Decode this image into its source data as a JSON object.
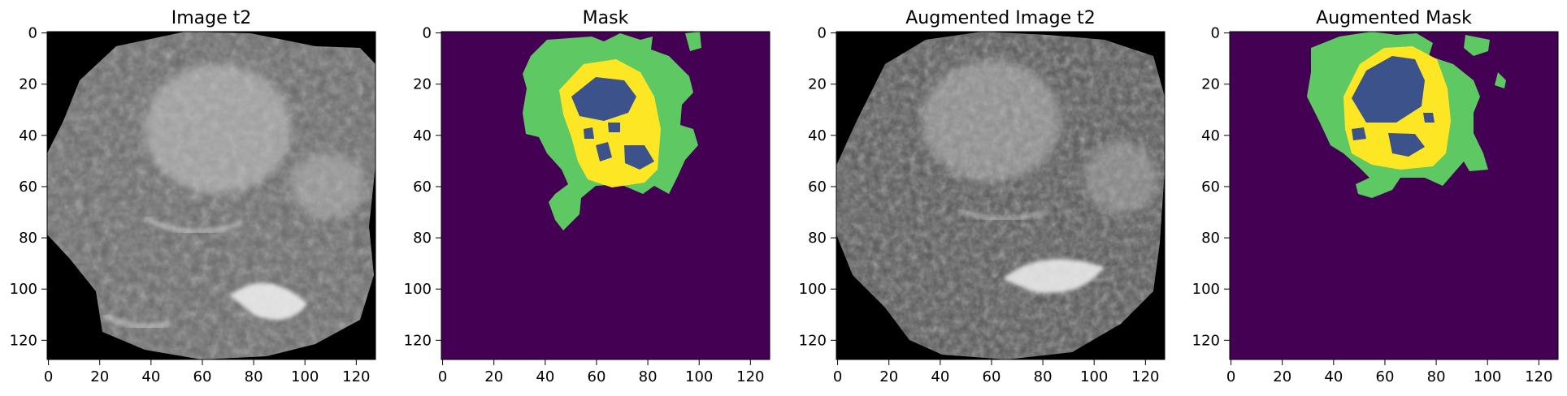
{
  "figure": {
    "colors": {
      "background": "#ffffff",
      "mask_background": "#440154",
      "mask_class_1": "#3b528b",
      "mask_class_2": "#5ec962",
      "mask_class_3": "#fde725"
    },
    "panels": [
      {
        "id": "image",
        "title": "Image t2",
        "kind": "mri-slice",
        "xticks": [
          "0",
          "20",
          "40",
          "60",
          "80",
          "100",
          "120"
        ],
        "yticks": [
          "0",
          "20",
          "40",
          "60",
          "80",
          "100",
          "120"
        ]
      },
      {
        "id": "mask",
        "title": "Mask",
        "kind": "segmentation-mask",
        "xticks": [
          "0",
          "20",
          "40",
          "60",
          "80",
          "100",
          "120"
        ],
        "yticks": [
          "0",
          "20",
          "40",
          "60",
          "80",
          "100",
          "120"
        ]
      },
      {
        "id": "aug_image",
        "title": "Augmented Image t2",
        "kind": "mri-slice",
        "xticks": [
          "0",
          "20",
          "40",
          "60",
          "80",
          "100",
          "120"
        ],
        "yticks": [
          "0",
          "20",
          "40",
          "60",
          "80",
          "100",
          "120"
        ]
      },
      {
        "id": "aug_mask",
        "title": "Augmented Mask",
        "kind": "segmentation-mask",
        "xticks": [
          "0",
          "20",
          "40",
          "60",
          "80",
          "100",
          "120"
        ],
        "yticks": [
          "0",
          "20",
          "40",
          "60",
          "80",
          "100",
          "120"
        ]
      }
    ]
  }
}
